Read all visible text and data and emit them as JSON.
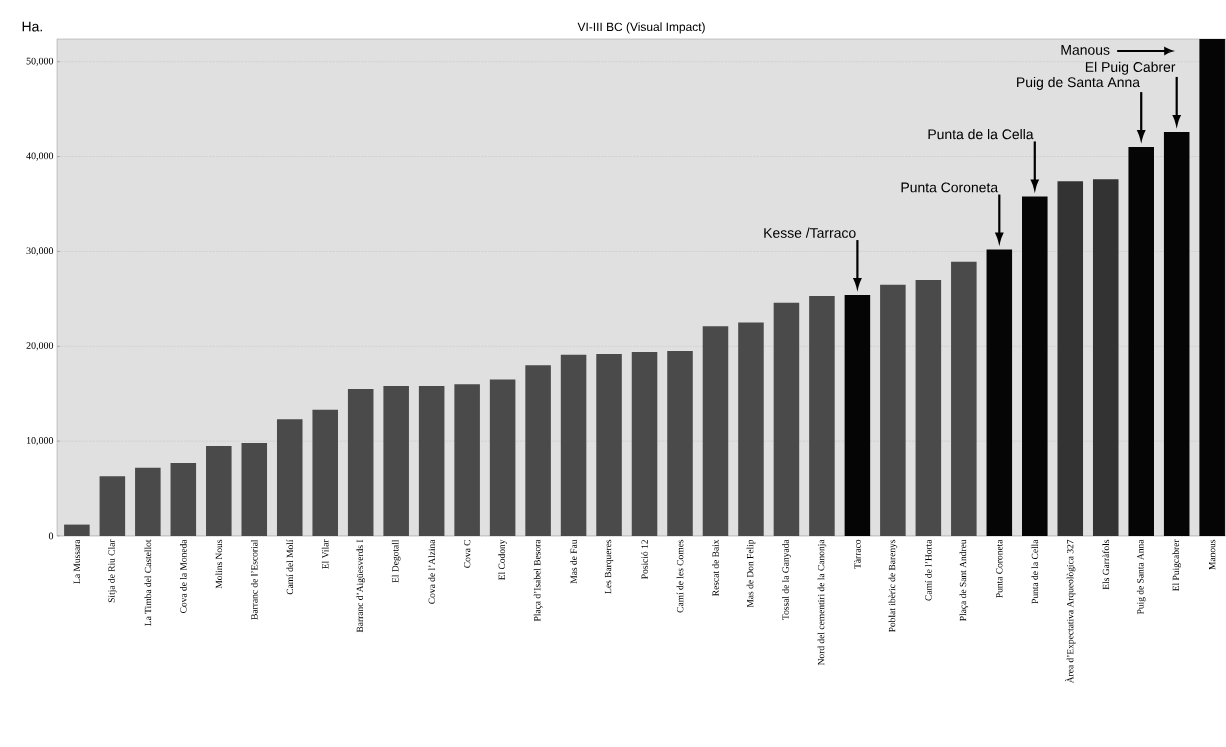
{
  "chart_data": {
    "type": "bar",
    "title": "VI-III BC (Visual Impact)",
    "ylabel": "Ha.",
    "categories": [
      "La Mussara",
      "Sitja de Riu Clar",
      "La Timba del Castellot",
      "Cova de la Moneda",
      "Molins Nous",
      "Barranc de l’Escorial",
      "Camí del Molí",
      "El Vilar",
      "Barranc d’Aigüesverds I",
      "El Degotall",
      "Cova de l’Alzina",
      "Cova C",
      "El Codony",
      "Plaça d’Isabel Besora",
      "Mas de Fau",
      "Les Barqueres",
      "Posició 12",
      "Camí de les Comes",
      "Rescat de Baix",
      "Mas de Don Felip",
      "Tossal de la Ganyada",
      "Nord del cementiri de la Canonja",
      "Tàrraco",
      "Poblat ibèric de Barenys",
      "Camí de l’Horta",
      "Plaça de Sant Andreu",
      "Punta Coroneta",
      "Punta de la Cella",
      "Àrea d’Expectativa Arqueològica 327",
      "Els Garràfols",
      "Puig de Santa Anna",
      "El Puigcabrer",
      "Manous"
    ],
    "values": [
      1200,
      6300,
      7200,
      7700,
      9500,
      9800,
      12300,
      13300,
      15500,
      15800,
      15800,
      16000,
      16500,
      18000,
      19100,
      19200,
      19400,
      19500,
      22100,
      22500,
      24600,
      25300,
      25400,
      26500,
      27000,
      28900,
      30200,
      35800,
      37400,
      37600,
      41000,
      42600,
      52400
    ],
    "colors": [
      "#4a4a4a",
      "#4a4a4a",
      "#4a4a4a",
      "#4a4a4a",
      "#4a4a4a",
      "#4a4a4a",
      "#4a4a4a",
      "#4a4a4a",
      "#4a4a4a",
      "#4a4a4a",
      "#4a4a4a",
      "#4a4a4a",
      "#4a4a4a",
      "#4a4a4a",
      "#4a4a4a",
      "#4a4a4a",
      "#4a4a4a",
      "#4a4a4a",
      "#4a4a4a",
      "#4a4a4a",
      "#4a4a4a",
      "#4a4a4a",
      "#050505",
      "#4a4a4a",
      "#4a4a4a",
      "#4a4a4a",
      "#050505",
      "#050505",
      "#333333",
      "#333333",
      "#050505",
      "#050505",
      "#050505"
    ],
    "ylim": [
      0,
      52400
    ],
    "yticks": [
      0,
      {
        "value": 10000,
        "label": "10,000"
      },
      {
        "value": 20000,
        "label": "20,000"
      },
      {
        "value": 30000,
        "label": "30,000"
      },
      {
        "value": 40000,
        "label": "40,000"
      },
      {
        "value": 50000,
        "label": "50,000"
      }
    ],
    "grid": "y",
    "annotations": [
      "Kesse /Tarraco",
      "Punta Coroneta",
      "Punta de la Cella",
      "Puig de Santa Anna",
      "El Puig Cabrer",
      "Manous"
    ]
  }
}
